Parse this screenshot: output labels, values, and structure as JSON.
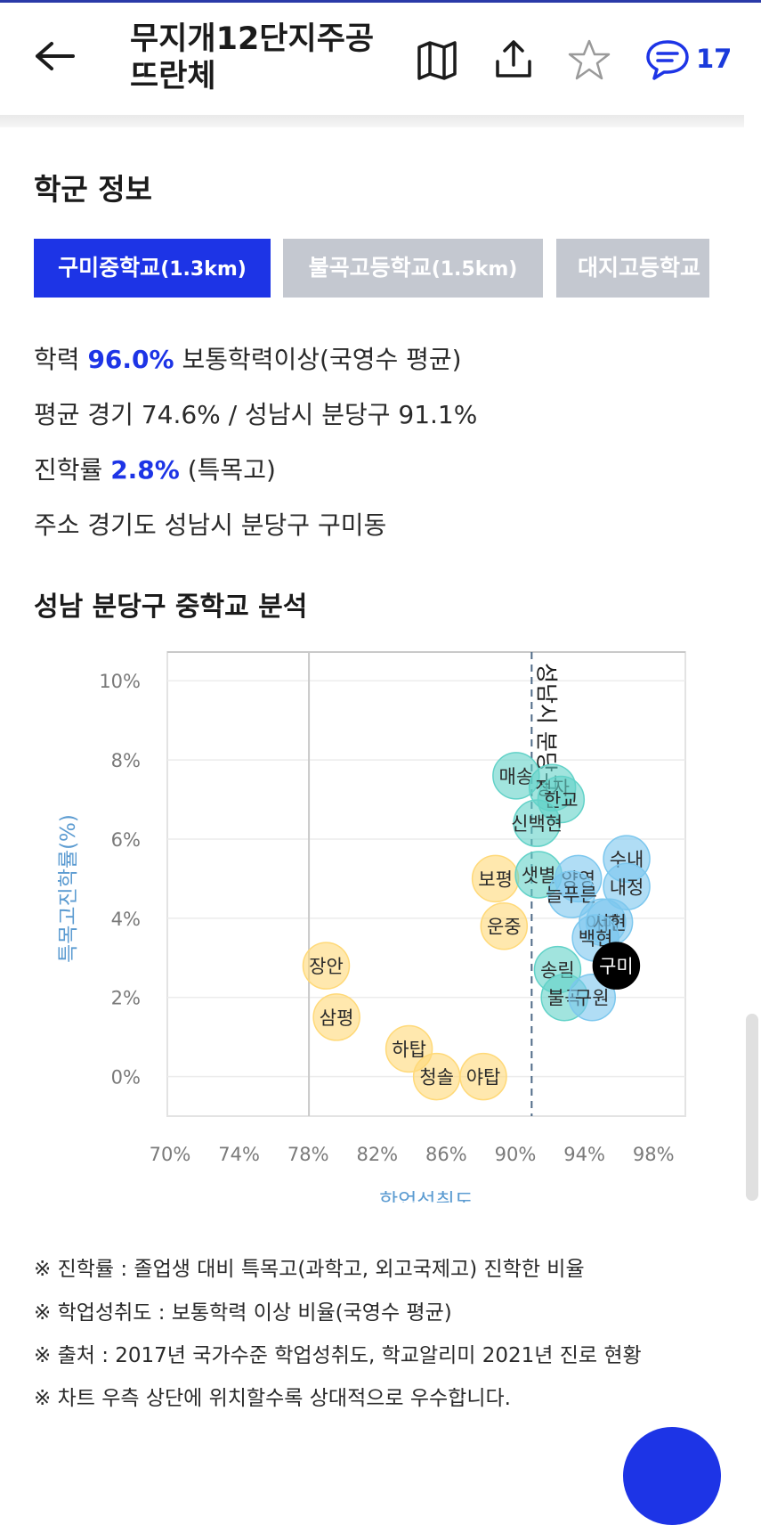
{
  "header": {
    "title_line1": "무지개12단지주공",
    "title_line2": "뜨란체",
    "comment_count": "17",
    "icons": [
      "back-arrow-icon",
      "map-icon",
      "share-icon",
      "star-icon",
      "comment-icon"
    ],
    "accent_color": "#1d34e6"
  },
  "school_section": {
    "title": "학군 정보",
    "tabs": [
      {
        "name": "구미중학교",
        "dist": "(1.3km)",
        "active": true
      },
      {
        "name": "불곡고등학교",
        "dist": "(1.5km)",
        "active": false
      },
      {
        "name": "대지고등학교",
        "dist": "",
        "active": false
      }
    ],
    "line1_label": "학력",
    "line1_value": "96.0%",
    "line1_rest": "보통학력이상(국영수 평균)",
    "line2": "평균 경기 74.6% / 성남시 분당구 91.1%",
    "line3_label": "진학률",
    "line3_value": "2.8%",
    "line3_rest": "(특목고)",
    "line4": "주소 경기도 성남시 분당구 구미동"
  },
  "analysis": {
    "title": "성남 분당구 중학교 분석"
  },
  "chart_data": {
    "type": "scatter",
    "xlabel": "학업성취도",
    "ylabel": "특목고진학률(%)",
    "xlim": [
      70,
      100
    ],
    "ylim": [
      -1,
      10.5
    ],
    "x_ticks": [
      "70%",
      "74%",
      "78%",
      "82%",
      "86%",
      "90%",
      "94%",
      "98%"
    ],
    "y_ticks": [
      "0%",
      "2%",
      "4%",
      "6%",
      "8%",
      "10%"
    ],
    "reference_lines": [
      {
        "x": 78.2,
        "style": "solid",
        "label": ""
      },
      {
        "x": 91.1,
        "style": "dashed",
        "label": "성남시 분당구"
      }
    ],
    "series": [
      {
        "color": "#ffd978",
        "points": [
          {
            "label": "장안",
            "x": 79.2,
            "y": 2.8
          },
          {
            "label": "삼평",
            "x": 79.8,
            "y": 1.5
          },
          {
            "label": "하탑",
            "x": 84.0,
            "y": 0.7
          },
          {
            "label": "청솔",
            "x": 85.6,
            "y": 0.0
          },
          {
            "label": "야탑",
            "x": 88.3,
            "y": 0.0
          },
          {
            "label": "보평",
            "x": 89.0,
            "y": 5.0
          },
          {
            "label": "운중",
            "x": 89.5,
            "y": 3.8
          }
        ]
      },
      {
        "color": "#62d2c8",
        "points": [
          {
            "label": "매송",
            "x": 90.2,
            "y": 7.6
          },
          {
            "label": "정자",
            "x": 92.3,
            "y": 7.3
          },
          {
            "label": "한교",
            "x": 92.8,
            "y": 7.0
          },
          {
            "label": "신백현",
            "x": 91.4,
            "y": 6.4
          },
          {
            "label": "샛별",
            "x": 91.5,
            "y": 5.1
          },
          {
            "label": "송림",
            "x": 92.6,
            "y": 2.7
          },
          {
            "label": "불곡",
            "x": 93.0,
            "y": 2.0
          }
        ]
      },
      {
        "color": "#7cc7ee",
        "points": [
          {
            "label": "양영",
            "x": 93.8,
            "y": 5.0
          },
          {
            "label": "늘푸른",
            "x": 93.4,
            "y": 4.6
          },
          {
            "label": "수내",
            "x": 96.6,
            "y": 5.5
          },
          {
            "label": "내정",
            "x": 96.6,
            "y": 4.8
          },
          {
            "label": "이매",
            "x": 95.2,
            "y": 3.9
          },
          {
            "label": "서현",
            "x": 95.6,
            "y": 3.9
          },
          {
            "label": "백현",
            "x": 94.8,
            "y": 3.5
          },
          {
            "label": "구원",
            "x": 94.6,
            "y": 2.0
          }
        ]
      },
      {
        "color": "#000000",
        "points": [
          {
            "label": "구미",
            "x": 96.0,
            "y": 2.8
          }
        ]
      }
    ]
  },
  "notes": [
    "※ 진학률 : 졸업생 대비 특목고(과학고, 외고국제고) 진학한 비율",
    "※ 학업성취도 : 보통학력 이상 비율(국영수 평균)",
    "※ 출처 : 2017년 국가수준 학업성취도, 학교알리미 2021년 진로 현황",
    "※ 차트 우측 상단에 위치할수록 상대적으로 우수합니다."
  ]
}
